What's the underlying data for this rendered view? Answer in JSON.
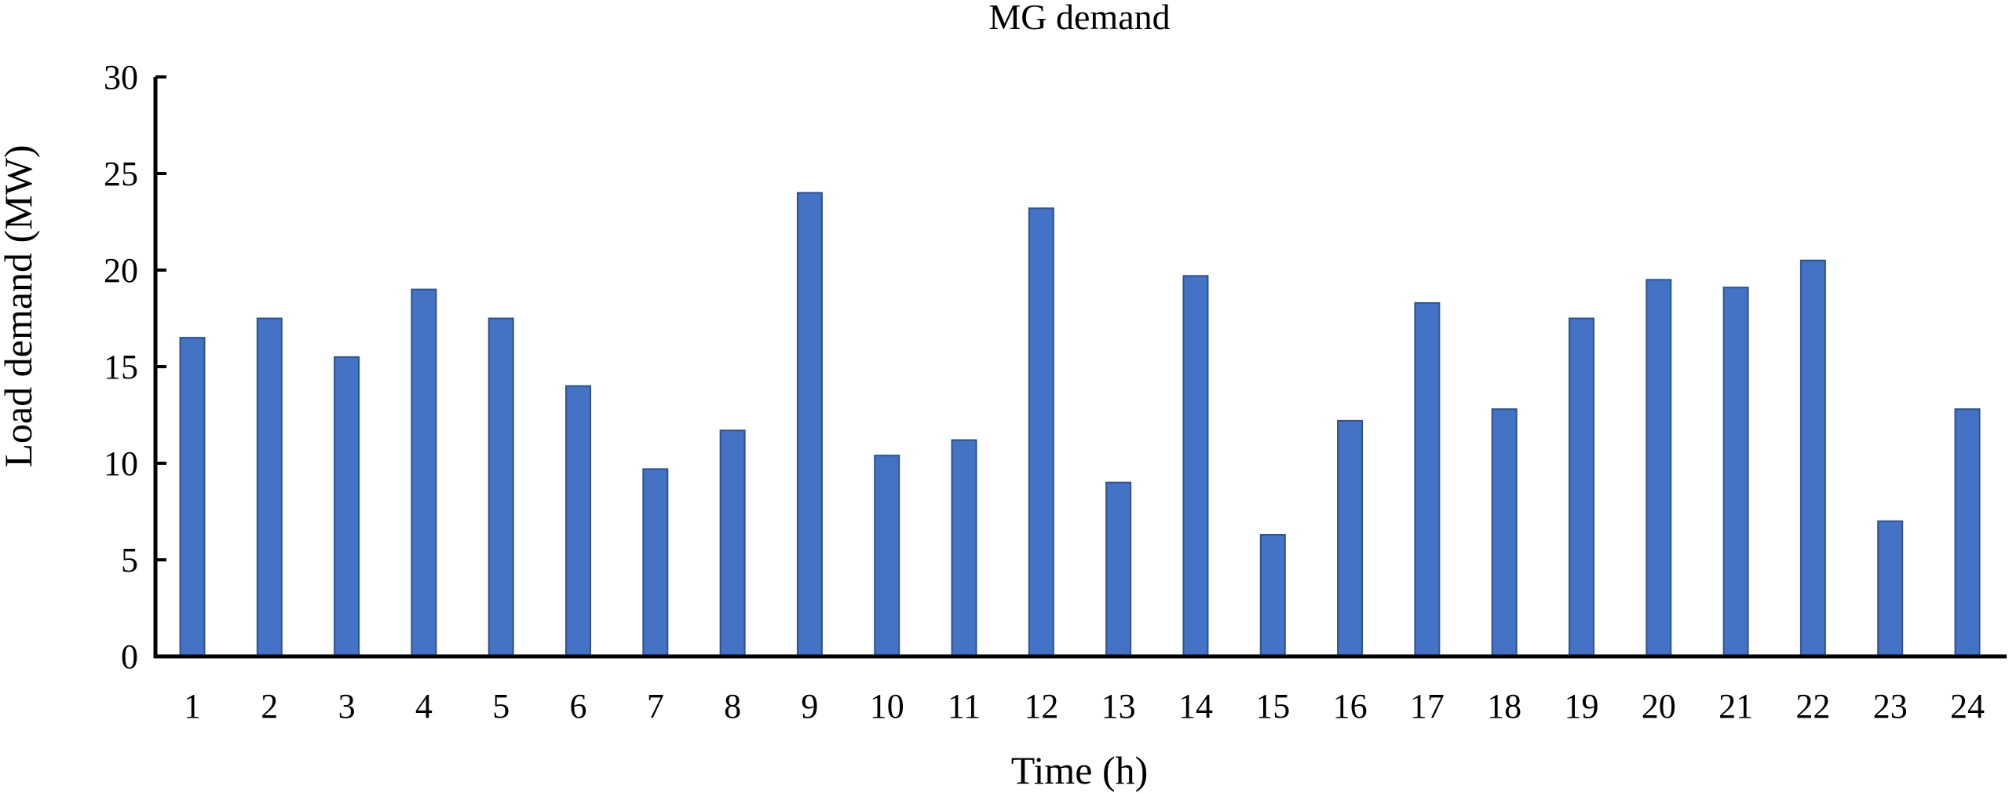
{
  "chart_data": {
    "type": "bar",
    "title": "MG demand",
    "xlabel": "Time  (h)",
    "ylabel": "Load demand (MW)",
    "ylim": [
      0,
      30
    ],
    "yticks": [
      "0",
      "5",
      "10",
      "15",
      "20",
      "25",
      "30"
    ],
    "categories": [
      "1",
      "2",
      "3",
      "4",
      "5",
      "6",
      "7",
      "8",
      "9",
      "10",
      "11",
      "12",
      "13",
      "14",
      "15",
      "16",
      "17",
      "18",
      "19",
      "20",
      "21",
      "22",
      "23",
      "24"
    ],
    "values": [
      16.5,
      17.5,
      15.5,
      19.0,
      17.5,
      14.0,
      9.7,
      11.7,
      24.0,
      10.4,
      11.2,
      23.2,
      9.0,
      19.7,
      6.3,
      12.2,
      18.3,
      12.8,
      17.5,
      19.5,
      19.1,
      20.5,
      7.0,
      12.8
    ],
    "grid": false,
    "legend": "none",
    "colors": {
      "bar": "#4472C4",
      "bar_edge": "#2F528F",
      "axis": "#000000"
    }
  }
}
